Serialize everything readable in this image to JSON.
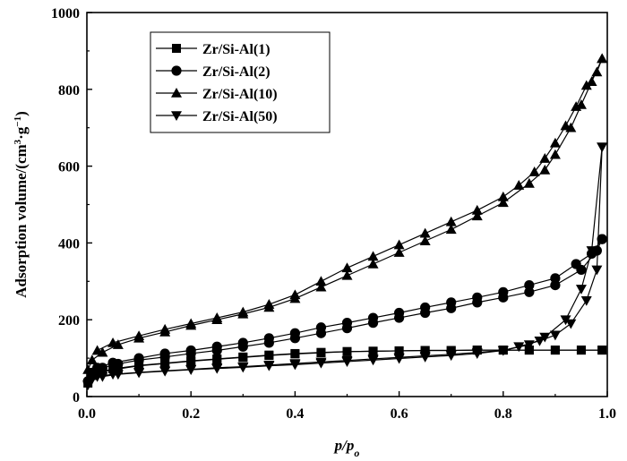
{
  "chart_data": {
    "type": "line",
    "xlabel": {
      "main": "p/p",
      "sub": "o"
    },
    "ylabel": {
      "main": "Adsorption volume/(cm",
      "sup1": "3",
      "mid": "·g",
      "sup2": "−1",
      "end": ")"
    },
    "xlim": [
      0.0,
      1.0
    ],
    "ylim": [
      0,
      1000
    ],
    "xticks": [
      0.0,
      0.2,
      0.4,
      0.6,
      0.8,
      1.0
    ],
    "xtick_labels": [
      "0.0",
      "0.2",
      "0.4",
      "0.6",
      "0.8",
      "1.0"
    ],
    "yticks": [
      0,
      200,
      400,
      600,
      800,
      1000
    ],
    "ytick_labels": [
      "0",
      "200",
      "400",
      "600",
      "800",
      "1000"
    ],
    "grid": false,
    "legend_position": "top-left",
    "series": [
      {
        "name": "Zr/Si-Al(1)",
        "marker": "square",
        "adsorption": [
          [
            0.002,
            35
          ],
          [
            0.01,
            55
          ],
          [
            0.03,
            65
          ],
          [
            0.06,
            72
          ],
          [
            0.1,
            80
          ],
          [
            0.15,
            86
          ],
          [
            0.2,
            92
          ],
          [
            0.25,
            97
          ],
          [
            0.3,
            102
          ],
          [
            0.35,
            107
          ],
          [
            0.4,
            111
          ],
          [
            0.45,
            114
          ],
          [
            0.5,
            117
          ],
          [
            0.55,
            118
          ],
          [
            0.6,
            119
          ],
          [
            0.65,
            120
          ],
          [
            0.7,
            120
          ],
          [
            0.75,
            121
          ],
          [
            0.8,
            121
          ],
          [
            0.85,
            121
          ],
          [
            0.9,
            121
          ],
          [
            0.95,
            121
          ],
          [
            0.99,
            121
          ]
        ],
        "desorption": [
          [
            0.99,
            121
          ],
          [
            0.95,
            121
          ],
          [
            0.9,
            121
          ],
          [
            0.85,
            121
          ],
          [
            0.8,
            121
          ],
          [
            0.75,
            121
          ],
          [
            0.7,
            120
          ],
          [
            0.65,
            120
          ],
          [
            0.6,
            119
          ],
          [
            0.55,
            118
          ],
          [
            0.5,
            117
          ],
          [
            0.45,
            115
          ],
          [
            0.4,
            112
          ],
          [
            0.35,
            108
          ],
          [
            0.3,
            103
          ],
          [
            0.25,
            98
          ],
          [
            0.2,
            93
          ],
          [
            0.15,
            87
          ],
          [
            0.1,
            81
          ],
          [
            0.05,
            72
          ],
          [
            0.02,
            62
          ]
        ]
      },
      {
        "name": "Zr/Si-Al(2)",
        "marker": "circle",
        "adsorption": [
          [
            0.002,
            40
          ],
          [
            0.01,
            62
          ],
          [
            0.03,
            75
          ],
          [
            0.06,
            85
          ],
          [
            0.1,
            95
          ],
          [
            0.15,
            103
          ],
          [
            0.2,
            112
          ],
          [
            0.25,
            120
          ],
          [
            0.3,
            130
          ],
          [
            0.35,
            140
          ],
          [
            0.4,
            152
          ],
          [
            0.45,
            165
          ],
          [
            0.5,
            178
          ],
          [
            0.55,
            192
          ],
          [
            0.6,
            205
          ],
          [
            0.65,
            218
          ],
          [
            0.7,
            230
          ],
          [
            0.75,
            245
          ],
          [
            0.8,
            258
          ],
          [
            0.85,
            272
          ],
          [
            0.9,
            290
          ],
          [
            0.95,
            330
          ],
          [
            0.98,
            380
          ],
          [
            0.99,
            410
          ]
        ],
        "desorption": [
          [
            0.99,
            410
          ],
          [
            0.97,
            372
          ],
          [
            0.94,
            345
          ],
          [
            0.9,
            308
          ],
          [
            0.85,
            290
          ],
          [
            0.8,
            272
          ],
          [
            0.75,
            258
          ],
          [
            0.7,
            245
          ],
          [
            0.65,
            232
          ],
          [
            0.6,
            218
          ],
          [
            0.55,
            205
          ],
          [
            0.5,
            192
          ],
          [
            0.45,
            180
          ],
          [
            0.4,
            165
          ],
          [
            0.35,
            152
          ],
          [
            0.3,
            140
          ],
          [
            0.25,
            130
          ],
          [
            0.2,
            120
          ],
          [
            0.15,
            112
          ],
          [
            0.1,
            100
          ],
          [
            0.05,
            88
          ],
          [
            0.02,
            75
          ]
        ]
      },
      {
        "name": "Zr/Si-Al(10)",
        "marker": "triangle-up",
        "adsorption": [
          [
            0.002,
            70
          ],
          [
            0.01,
            95
          ],
          [
            0.03,
            115
          ],
          [
            0.06,
            135
          ],
          [
            0.1,
            152
          ],
          [
            0.15,
            168
          ],
          [
            0.2,
            185
          ],
          [
            0.25,
            200
          ],
          [
            0.3,
            215
          ],
          [
            0.35,
            232
          ],
          [
            0.4,
            255
          ],
          [
            0.45,
            285
          ],
          [
            0.5,
            315
          ],
          [
            0.55,
            345
          ],
          [
            0.6,
            375
          ],
          [
            0.65,
            405
          ],
          [
            0.7,
            435
          ],
          [
            0.75,
            470
          ],
          [
            0.8,
            505
          ],
          [
            0.85,
            555
          ],
          [
            0.88,
            590
          ],
          [
            0.9,
            630
          ],
          [
            0.93,
            700
          ],
          [
            0.95,
            760
          ],
          [
            0.97,
            820
          ],
          [
            0.99,
            880
          ]
        ],
        "desorption": [
          [
            0.99,
            880
          ],
          [
            0.98,
            845
          ],
          [
            0.96,
            810
          ],
          [
            0.94,
            755
          ],
          [
            0.92,
            705
          ],
          [
            0.9,
            660
          ],
          [
            0.88,
            620
          ],
          [
            0.86,
            585
          ],
          [
            0.83,
            550
          ],
          [
            0.8,
            520
          ],
          [
            0.75,
            485
          ],
          [
            0.7,
            455
          ],
          [
            0.65,
            425
          ],
          [
            0.6,
            395
          ],
          [
            0.55,
            365
          ],
          [
            0.5,
            335
          ],
          [
            0.45,
            300
          ],
          [
            0.4,
            265
          ],
          [
            0.35,
            240
          ],
          [
            0.3,
            220
          ],
          [
            0.25,
            205
          ],
          [
            0.2,
            190
          ],
          [
            0.15,
            175
          ],
          [
            0.1,
            158
          ],
          [
            0.05,
            140
          ],
          [
            0.02,
            120
          ]
        ]
      },
      {
        "name": "Zr/Si-Al(50)",
        "marker": "triangle-down",
        "adsorption": [
          [
            0.002,
            30
          ],
          [
            0.01,
            45
          ],
          [
            0.03,
            52
          ],
          [
            0.06,
            58
          ],
          [
            0.1,
            62
          ],
          [
            0.15,
            66
          ],
          [
            0.2,
            70
          ],
          [
            0.25,
            73
          ],
          [
            0.3,
            76
          ],
          [
            0.35,
            80
          ],
          [
            0.4,
            83
          ],
          [
            0.45,
            87
          ],
          [
            0.5,
            91
          ],
          [
            0.55,
            95
          ],
          [
            0.6,
            99
          ],
          [
            0.65,
            103
          ],
          [
            0.7,
            107
          ],
          [
            0.75,
            112
          ],
          [
            0.8,
            120
          ],
          [
            0.85,
            135
          ],
          [
            0.88,
            155
          ],
          [
            0.92,
            200
          ],
          [
            0.95,
            280
          ],
          [
            0.97,
            380
          ],
          [
            0.99,
            650
          ]
        ],
        "desorption": [
          [
            0.99,
            650
          ],
          [
            0.98,
            330
          ],
          [
            0.96,
            250
          ],
          [
            0.93,
            190
          ],
          [
            0.9,
            160
          ],
          [
            0.87,
            145
          ],
          [
            0.83,
            130
          ],
          [
            0.8,
            120
          ],
          [
            0.75,
            115
          ],
          [
            0.7,
            110
          ],
          [
            0.65,
            106
          ],
          [
            0.6,
            102
          ],
          [
            0.55,
            98
          ],
          [
            0.5,
            94
          ],
          [
            0.45,
            90
          ],
          [
            0.4,
            86
          ],
          [
            0.35,
            82
          ],
          [
            0.3,
            78
          ],
          [
            0.25,
            75
          ],
          [
            0.2,
            71
          ],
          [
            0.15,
            67
          ],
          [
            0.1,
            63
          ],
          [
            0.05,
            58
          ],
          [
            0.02,
            52
          ]
        ]
      }
    ]
  }
}
